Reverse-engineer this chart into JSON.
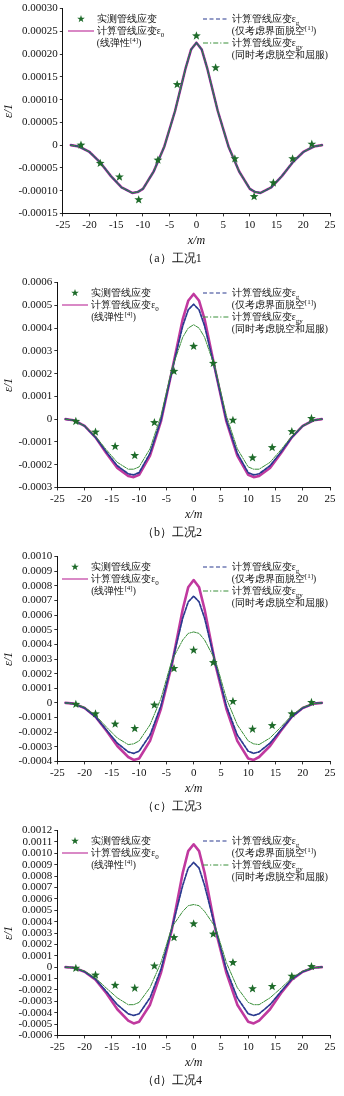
{
  "chart_data": [
    {
      "type": "line",
      "title": "（a）工况1",
      "xlabel": "x/m",
      "ylabel": "ε/1",
      "legend": "top",
      "xlim": [
        -25,
        25
      ],
      "xticks": [
        -25,
        -20,
        -15,
        -10,
        -5,
        0,
        5,
        10,
        15,
        20,
        25
      ],
      "ylim": [
        -0.00015,
        0.0003
      ],
      "yticks": [
        {
          "value": -0.00015,
          "label": "-0.00015"
        },
        {
          "value": -0.0001,
          "label": "-0.00010"
        },
        {
          "value": -5e-05,
          "label": "-0.00005"
        },
        {
          "value": 0,
          "label": "0"
        },
        {
          "value": 5e-05,
          "label": "0.00005"
        },
        {
          "value": 0.0001,
          "label": "0.00010"
        },
        {
          "value": 0.00015,
          "label": "0.00015"
        },
        {
          "value": 0.0002,
          "label": "0.00020"
        },
        {
          "value": 0.00025,
          "label": "0.00025"
        },
        {
          "value": 0.0003,
          "label": "0.00030"
        }
      ],
      "x": [
        -23.5,
        -22,
        -20,
        -18,
        -16,
        -14,
        -12,
        -11,
        -10,
        -8,
        -6,
        -4,
        -2,
        -1,
        0,
        1,
        2,
        4,
        6,
        8,
        10,
        11,
        12,
        14,
        16,
        18,
        20,
        22,
        23.5
      ],
      "series": [
        {
          "name": "实测管线应变",
          "type": "scatter",
          "marker": "star",
          "color": "#1e6b2a",
          "x": [
            -21.6,
            -18,
            -14.4,
            -10.8,
            -7.2,
            -3.6,
            0,
            3.6,
            7.2,
            10.8,
            14.4,
            18,
            21.6
          ],
          "values": [
            0,
            -4e-05,
            -7e-05,
            -0.00012,
            -3.3e-05,
            0.000133,
            0.00024,
            0.00017,
            -3e-05,
            -0.000113,
            -8.3e-05,
            -3e-05,
            2e-06
          ]
        },
        {
          "name": "计算管线应变ε$_{0}$\n(线弹性$^{[4]}$)",
          "marker": "none",
          "line_style": "solid",
          "color": "#c0399f",
          "values": [
            0,
            -3e-06,
            -1.5e-05,
            -3.8e-05,
            -6.8e-05,
            -9.3e-05,
            -0.000105,
            -0.000103,
            -9.6e-05,
            -5.8e-05,
            -3e-06,
            7.5e-05,
            0.00017,
            0.00021,
            0.000225,
            0.00021,
            0.00017,
            7.5e-05,
            -3e-06,
            -5.8e-05,
            -9.6e-05,
            -0.000103,
            -0.000105,
            -9.3e-05,
            -6.8e-05,
            -3.8e-05,
            -1.5e-05,
            -3e-06,
            0
          ]
        },
        {
          "name": "计算管线应变ε$_{g}$\n(仅考虑界面脱空$^{[1]}$)",
          "marker": "none",
          "line_style": "dashed",
          "color": "#2a3a8f",
          "values": [
            0,
            -3e-06,
            -1.5e-05,
            -3.8e-05,
            -6.8e-05,
            -9.3e-05,
            -0.000105,
            -0.000103,
            -9.6e-05,
            -5.8e-05,
            -3e-06,
            7.5e-05,
            0.00017,
            0.00021,
            0.000225,
            0.00021,
            0.00017,
            7.5e-05,
            -3e-06,
            -5.8e-05,
            -9.6e-05,
            -0.000103,
            -0.000105,
            -9.3e-05,
            -6.8e-05,
            -3.8e-05,
            -1.5e-05,
            -3e-06,
            0
          ]
        },
        {
          "name": "计算管线应变ε$_{gy}$\n(同时考虑脱空和屈服)",
          "marker": "none",
          "line_style": "dotted",
          "color": "#3a8f3a",
          "values": [
            0,
            -3e-06,
            -1.5e-05,
            -3.8e-05,
            -6.8e-05,
            -9.3e-05,
            -0.000105,
            -0.000103,
            -9.6e-05,
            -5.8e-05,
            -3e-06,
            7.5e-05,
            0.00017,
            0.00021,
            0.000225,
            0.00021,
            0.00017,
            7.5e-05,
            -3e-06,
            -5.8e-05,
            -9.6e-05,
            -0.000103,
            -0.000105,
            -9.3e-05,
            -6.8e-05,
            -3.8e-05,
            -1.5e-05,
            -3e-06,
            0
          ]
        }
      ]
    },
    {
      "type": "line",
      "title": "（b）工况2",
      "xlabel": "x/m",
      "ylabel": "ε/1",
      "legend": "top",
      "xlim": [
        -25,
        25
      ],
      "xticks": [
        -25,
        -20,
        -15,
        -10,
        -5,
        0,
        5,
        10,
        15,
        20,
        25
      ],
      "ylim": [
        -0.0003,
        0.0006
      ],
      "yticks": [
        {
          "value": -0.0003,
          "label": "-0.0003"
        },
        {
          "value": -0.0002,
          "label": "-0.0002"
        },
        {
          "value": -0.0001,
          "label": "-0.0001"
        },
        {
          "value": 0,
          "label": "0"
        },
        {
          "value": 0.0001,
          "label": "0.0001"
        },
        {
          "value": 0.0002,
          "label": "0.0002"
        },
        {
          "value": 0.0003,
          "label": "0.0003"
        },
        {
          "value": 0.0004,
          "label": "0.0004"
        },
        {
          "value": 0.0005,
          "label": "0.0005"
        },
        {
          "value": 0.0006,
          "label": "0.0006"
        }
      ],
      "x": [
        -23.5,
        -22,
        -20,
        -18,
        -16,
        -14,
        -12,
        -11,
        -10,
        -8,
        -6,
        -4,
        -2,
        -1,
        0,
        1,
        2,
        4,
        6,
        8,
        10,
        11,
        12,
        14,
        16,
        18,
        20,
        22,
        23.5
      ],
      "series": [
        {
          "name": "实测管线应变",
          "type": "scatter",
          "marker": "star",
          "color": "#1e6b2a",
          "x": [
            -21.6,
            -18,
            -14.4,
            -10.8,
            -7.2,
            -3.6,
            0,
            3.6,
            7.2,
            10.8,
            14.4,
            18,
            21.6
          ],
          "values": [
            -1e-05,
            -5.7e-05,
            -0.00012,
            -0.00016,
            -1.5e-05,
            0.00021,
            0.00032,
            0.000245,
            -5e-06,
            -0.00017,
            -0.000125,
            -5.5e-05,
            3e-06
          ]
        },
        {
          "name": "计算管线应变ε$_{0}$\n(线弹性$^{[4]}$)",
          "marker": "none",
          "line_style": "solid",
          "color": "#c0399f",
          "values": [
            0,
            -5e-06,
            -3e-05,
            -8e-05,
            -0.00015,
            -0.000215,
            -0.00025,
            -0.000255,
            -0.000245,
            -0.00016,
            -1e-05,
            0.00021,
            0.00044,
            0.00052,
            0.00055,
            0.00052,
            0.00044,
            0.00021,
            -1e-05,
            -0.00016,
            -0.000245,
            -0.000255,
            -0.00025,
            -0.000215,
            -0.00015,
            -8e-05,
            -3e-05,
            -5e-06,
            0
          ]
        },
        {
          "name": "计算管线应变ε$_{g}$\n(仅考虑界面脱空$^{[1]}$)",
          "marker": "none",
          "line_style": "dashed",
          "color": "#2a3a8f",
          "values": [
            0,
            -5e-06,
            -3e-05,
            -8e-05,
            -0.000145,
            -0.000205,
            -0.00024,
            -0.000245,
            -0.000235,
            -0.00015,
            -5e-06,
            0.00021,
            0.00041,
            0.00048,
            0.000505,
            0.00048,
            0.00041,
            0.00021,
            -5e-06,
            -0.00015,
            -0.000235,
            -0.000245,
            -0.00024,
            -0.000205,
            -0.000145,
            -8e-05,
            -3e-05,
            -5e-06,
            0
          ]
        },
        {
          "name": "计算管线应变ε$_{gy}$\n(同时考虑脱空和屈服)",
          "marker": "none",
          "line_style": "dotted",
          "color": "#3a8f3a",
          "values": [
            0,
            -5e-06,
            -3e-05,
            -7.5e-05,
            -0.000135,
            -0.00019,
            -0.00022,
            -0.00022,
            -0.00021,
            -0.00013,
            1.5e-05,
            0.00022,
            0.00036,
            0.0004,
            0.000415,
            0.0004,
            0.00036,
            0.00022,
            1.5e-05,
            -0.00013,
            -0.00021,
            -0.00022,
            -0.00022,
            -0.00019,
            -0.000135,
            -7.5e-05,
            -3e-05,
            -5e-06,
            0
          ]
        }
      ]
    },
    {
      "type": "line",
      "title": "（c）工况3",
      "xlabel": "x/m",
      "ylabel": "ε/1",
      "legend": "top",
      "xlim": [
        -25,
        25
      ],
      "xticks": [
        -25,
        -20,
        -15,
        -10,
        -5,
        0,
        5,
        10,
        15,
        20,
        25
      ],
      "ylim": [
        -0.0004,
        0.001
      ],
      "yticks": [
        {
          "value": -0.0004,
          "label": "-0.0004"
        },
        {
          "value": -0.0003,
          "label": "-0.0003"
        },
        {
          "value": -0.0002,
          "label": "-0.0002"
        },
        {
          "value": -0.0001,
          "label": "-0.0001"
        },
        {
          "value": 0,
          "label": "0"
        },
        {
          "value": 0.0001,
          "label": "0.0001"
        },
        {
          "value": 0.0002,
          "label": "0.0002"
        },
        {
          "value": 0.0003,
          "label": "0.0003"
        },
        {
          "value": 0.0004,
          "label": "0.0004"
        },
        {
          "value": 0.0005,
          "label": "0.0005"
        },
        {
          "value": 0.0006,
          "label": "0.0006"
        },
        {
          "value": 0.0007,
          "label": "0.0007"
        },
        {
          "value": 0.0008,
          "label": "0.0008"
        },
        {
          "value": 0.0009,
          "label": "0.0009"
        },
        {
          "value": 0.001,
          "label": "0.0010"
        }
      ],
      "x": [
        -23.5,
        -22,
        -20,
        -18,
        -16,
        -14,
        -12,
        -11,
        -10,
        -8,
        -6,
        -4,
        -2,
        -1,
        0,
        1,
        2,
        4,
        6,
        8,
        10,
        11,
        12,
        14,
        16,
        18,
        20,
        22,
        23.5
      ],
      "series": [
        {
          "name": "实测管线应变",
          "type": "scatter",
          "marker": "star",
          "color": "#1e6b2a",
          "x": [
            -21.6,
            -18,
            -14.4,
            -10.8,
            -7.2,
            -3.6,
            0,
            3.6,
            7.2,
            10.8,
            14.4,
            18,
            21.6
          ],
          "values": [
            -1e-05,
            -7.5e-05,
            -0.000145,
            -0.000175,
            -1.5e-05,
            0.000235,
            0.00036,
            0.000275,
            1e-05,
            -0.00018,
            -0.000155,
            -7.5e-05,
            3e-06
          ]
        },
        {
          "name": "计算管线应变ε$_{0}$\n(线弹性$^{[4]}$)",
          "marker": "none",
          "line_style": "solid",
          "color": "#c0399f",
          "values": [
            0,
            -5e-06,
            -3.5e-05,
            -9.5e-05,
            -0.00019,
            -0.000295,
            -0.00037,
            -0.00039,
            -0.00038,
            -0.00026,
            -4e-05,
            0.00026,
            0.00064,
            0.00079,
            0.00084,
            0.00079,
            0.00064,
            0.00026,
            -4e-05,
            -0.00026,
            -0.00038,
            -0.00039,
            -0.00037,
            -0.000295,
            -0.00019,
            -9.5e-05,
            -3.5e-05,
            -5e-06,
            0
          ]
        },
        {
          "name": "计算管线应变ε$_{g}$\n(仅考虑界面脱空$^{[1]}$)",
          "marker": "none",
          "line_style": "dashed",
          "color": "#2a3a8f",
          "values": [
            0,
            -5e-06,
            -3.5e-05,
            -9.5e-05,
            -0.000185,
            -0.000275,
            -0.000335,
            -0.000345,
            -0.00033,
            -0.00022,
            -2e-05,
            0.00027,
            0.00058,
            0.00069,
            0.00073,
            0.00069,
            0.00058,
            0.00027,
            -2e-05,
            -0.00022,
            -0.00033,
            -0.000345,
            -0.000335,
            -0.000275,
            -0.000185,
            -9.5e-05,
            -3.5e-05,
            -5e-06,
            0
          ]
        },
        {
          "name": "计算管线应变ε$_{gy}$\n(同时考虑脱空和屈服)",
          "marker": "none",
          "line_style": "dotted",
          "color": "#3a8f3a",
          "values": [
            0,
            -5e-06,
            -3e-05,
            -8.5e-05,
            -0.000165,
            -0.00024,
            -0.000285,
            -0.00028,
            -0.00026,
            -0.00015,
            3e-05,
            0.00029,
            0.00043,
            0.000475,
            0.000485,
            0.000475,
            0.00043,
            0.00029,
            3e-05,
            -0.00015,
            -0.00026,
            -0.00028,
            -0.000285,
            -0.00024,
            -0.000165,
            -8.5e-05,
            -3e-05,
            -5e-06,
            0
          ]
        }
      ]
    },
    {
      "type": "line",
      "title": "（d）工况4",
      "xlabel": "x/m",
      "ylabel": "ε/1",
      "legend": "top",
      "xlim": [
        -25,
        25
      ],
      "xticks": [
        -25,
        -20,
        -15,
        -10,
        -5,
        0,
        5,
        10,
        15,
        20,
        25
      ],
      "ylim": [
        -0.0006,
        0.0012
      ],
      "yticks": [
        {
          "value": -0.0006,
          "label": "-0.0006"
        },
        {
          "value": -0.0005,
          "label": "-0.0005"
        },
        {
          "value": -0.0004,
          "label": "-0.0004"
        },
        {
          "value": -0.0003,
          "label": "-0.0003"
        },
        {
          "value": -0.0002,
          "label": "-0.0002"
        },
        {
          "value": -0.0001,
          "label": "-0.0001"
        },
        {
          "value": 0,
          "label": "0"
        },
        {
          "value": 0.0001,
          "label": "0.0001"
        },
        {
          "value": 0.0002,
          "label": "0.0002"
        },
        {
          "value": 0.0003,
          "label": "0.0003"
        },
        {
          "value": 0.0004,
          "label": "0.0004"
        },
        {
          "value": 0.0005,
          "label": "0.0005"
        },
        {
          "value": 0.0006,
          "label": "0.0006"
        },
        {
          "value": 0.0007,
          "label": "0.0007"
        },
        {
          "value": 0.0008,
          "label": "0.0008"
        },
        {
          "value": 0.0009,
          "label": "0.0009"
        },
        {
          "value": 0.001,
          "label": "0.0010"
        },
        {
          "value": 0.0011,
          "label": "0.0011"
        },
        {
          "value": 0.0012,
          "label": "0.0012"
        }
      ],
      "x": [
        -23.5,
        -22,
        -20,
        -18,
        -16,
        -14,
        -12,
        -11,
        -10,
        -8,
        -6,
        -4,
        -2,
        -1,
        0,
        1,
        2,
        4,
        6,
        8,
        10,
        11,
        12,
        14,
        16,
        18,
        20,
        22,
        23.5
      ],
      "series": [
        {
          "name": "实测管线应变",
          "type": "scatter",
          "marker": "star",
          "color": "#1e6b2a",
          "x": [
            -21.6,
            -18,
            -14.4,
            -10.8,
            -7.2,
            -3.6,
            0,
            3.6,
            7.2,
            10.8,
            14.4,
            18,
            21.6
          ],
          "values": [
            -1e-05,
            -7e-05,
            -0.00016,
            -0.000185,
            1e-05,
            0.00026,
            0.00038,
            0.00029,
            4e-05,
            -0.00019,
            -0.00017,
            -8e-05,
            5e-06
          ]
        },
        {
          "name": "计算管线应变ε$_{0}$\n(线弹性$^{[4]}$)",
          "marker": "none",
          "line_style": "solid",
          "color": "#c0399f",
          "values": [
            0,
            -5e-06,
            -4e-05,
            -0.00011,
            -0.00023,
            -0.00037,
            -0.00047,
            -0.000495,
            -0.00048,
            -0.00033,
            -5e-05,
            0.00033,
            0.00083,
            0.00102,
            0.00108,
            0.00102,
            0.00083,
            0.00033,
            -5e-05,
            -0.00033,
            -0.00048,
            -0.000495,
            -0.00047,
            -0.00037,
            -0.00023,
            -0.00011,
            -4e-05,
            -5e-06,
            0
          ]
        },
        {
          "name": "计算管线应变ε$_{g}$\n(仅考虑界面脱空$^{[1]}$)",
          "marker": "none",
          "line_style": "dashed",
          "color": "#2a3a8f",
          "values": [
            0,
            -5e-06,
            -4e-05,
            -0.000105,
            -0.000215,
            -0.00033,
            -0.00041,
            -0.000425,
            -0.00041,
            -0.00027,
            -2e-05,
            0.00034,
            0.00072,
            0.00087,
            0.00092,
            0.00087,
            0.00072,
            0.00034,
            -2e-05,
            -0.00027,
            -0.00041,
            -0.000425,
            -0.00041,
            -0.00033,
            -0.000215,
            -0.000105,
            -4e-05,
            -5e-06,
            0
          ]
        },
        {
          "name": "计算管线应变ε$_{gy}$\n(同时考虑脱空和屈服)",
          "marker": "none",
          "line_style": "dotted",
          "color": "#3a8f3a",
          "values": [
            0,
            -5e-06,
            -3.5e-05,
            -9.5e-05,
            -0.000185,
            -0.00027,
            -0.00033,
            -0.00033,
            -0.00031,
            -0.00018,
            4e-05,
            0.00035,
            0.00049,
            0.00054,
            0.00055,
            0.00054,
            0.00049,
            0.00035,
            4e-05,
            -0.00018,
            -0.00031,
            -0.00033,
            -0.00033,
            -0.00027,
            -0.000185,
            -9.5e-05,
            -3.5e-05,
            -5e-06,
            0
          ]
        }
      ]
    }
  ]
}
